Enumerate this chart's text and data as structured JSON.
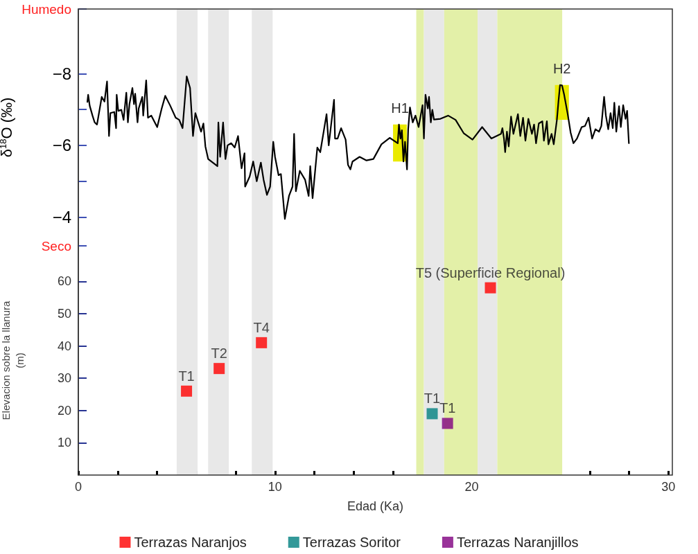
{
  "chart_data": [
    {
      "type": "line",
      "ylabel": "δ$^{18}$O (‰)",
      "xlim": [
        0,
        30.2
      ],
      "ylim": [
        -3.2,
        -9.8
      ],
      "tick_labels": "y",
      "grid": false,
      "legend": false,
      "xticks": [
        0,
        10,
        20,
        30
      ],
      "yticks": [
        {
          "value": -9.8,
          "label": "Humedo"
        },
        -8,
        {
          "value": -7,
          "label": null
        },
        -6,
        {
          "value": -5,
          "label": null
        },
        -4,
        {
          "value": -3.2,
          "label": "Seco"
        }
      ],
      "series": [
        {
          "color": "#000000",
          "x": [
            0.46,
            0.5,
            0.58,
            0.72,
            0.83,
            0.95,
            1.19,
            1.33,
            1.46,
            1.56,
            1.63,
            1.83,
            1.92,
            1.95,
            2.03,
            2.19,
            2.3,
            2.44,
            2.52,
            2.6,
            2.75,
            2.83,
            2.89,
            3.01,
            3.07,
            3.25,
            3.3,
            3.45,
            3.54,
            3.71,
            4.01,
            4.24,
            4.42,
            4.66,
            4.95,
            5.13,
            5.3,
            5.51,
            5.68,
            5.83,
            5.95,
            6.13,
            6.24,
            6.36,
            6.46,
            6.6,
            7.07,
            7.12,
            7.21,
            7.36,
            7.48,
            7.59,
            7.77,
            7.95,
            8.12,
            8.3,
            8.45,
            8.48,
            8.71,
            8.89,
            9.07,
            9.28,
            9.42,
            9.59,
            9.75,
            9.91,
            10.0,
            10.18,
            10.3,
            10.5,
            10.71,
            10.89,
            10.97,
            11.06,
            11.26,
            11.53,
            11.71,
            11.79,
            11.91,
            12.15,
            12.3,
            12.62,
            12.73,
            13.0,
            13.05,
            13.18,
            13.36,
            13.59,
            13.71,
            13.83,
            13.94,
            14.3,
            14.65,
            15.0,
            15.41,
            15.83,
            16.24,
            16.3,
            16.38,
            16.45,
            16.53,
            16.61,
            16.71,
            16.77,
            16.86,
            17.0,
            17.14,
            17.3,
            17.5,
            17.57,
            17.65,
            17.77,
            17.83,
            17.92,
            18.0,
            18.08,
            18.41,
            18.8,
            19.18,
            19.59,
            20.04,
            20.53,
            21.0,
            21.49,
            21.56,
            21.64,
            21.7,
            21.79,
            21.88,
            22.0,
            22.12,
            22.23,
            22.35,
            22.47,
            22.61,
            22.73,
            22.88,
            23.06,
            23.17,
            23.27,
            23.41,
            23.59,
            23.67,
            23.82,
            23.9,
            24.06,
            24.17,
            24.33,
            24.41,
            24.49,
            24.59,
            24.7,
            24.88,
            25.03,
            25.17,
            25.35,
            25.59,
            25.76,
            25.94,
            26.12,
            26.29,
            26.47,
            26.59,
            26.73,
            26.82,
            26.94,
            27.06,
            27.17,
            27.25,
            27.35,
            27.49,
            27.58,
            27.7,
            27.82,
            27.9,
            27.99
          ],
          "values": [
            -7.21,
            -7.41,
            -7.1,
            -6.83,
            -6.64,
            -6.58,
            -7.35,
            -7.22,
            -7.78,
            -6.26,
            -6.9,
            -6.93,
            -6.48,
            -7.41,
            -6.96,
            -6.99,
            -6.71,
            -7.47,
            -6.64,
            -7.15,
            -7.6,
            -7.15,
            -7.44,
            -6.64,
            -7.03,
            -7.35,
            -6.83,
            -7.81,
            -6.77,
            -6.83,
            -6.51,
            -7.03,
            -7.38,
            -7.12,
            -6.77,
            -6.71,
            -6.48,
            -7.92,
            -7.6,
            -6.26,
            -6.9,
            -6.58,
            -6.38,
            -6.61,
            -5.97,
            -5.62,
            -5.42,
            -6.64,
            -5.68,
            -6.64,
            -5.62,
            -6.0,
            -6.06,
            -5.94,
            -6.26,
            -5.36,
            -5.78,
            -4.85,
            -5.13,
            -5.55,
            -5.0,
            -5.52,
            -5.04,
            -4.62,
            -4.85,
            -6.1,
            -5.68,
            -5.17,
            -5.2,
            -3.95,
            -4.59,
            -4.85,
            -6.32,
            -4.72,
            -5.29,
            -5.04,
            -4.59,
            -5.42,
            -4.53,
            -5.94,
            -5.81,
            -6.87,
            -6.0,
            -7.27,
            -6.19,
            -6.19,
            -6.48,
            -6.16,
            -5.46,
            -5.33,
            -5.55,
            -5.68,
            -5.58,
            -5.62,
            -6.03,
            -6.21,
            -6.06,
            -6.58,
            -6.19,
            -6.42,
            -5.55,
            -6.1,
            -5.33,
            -6.45,
            -7.06,
            -6.64,
            -6.83,
            -6.51,
            -7.12,
            -6.19,
            -7.41,
            -7.03,
            -7.35,
            -6.64,
            -6.99,
            -6.72,
            -6.74,
            -6.83,
            -6.71,
            -6.34,
            -6.16,
            -6.51,
            -6.19,
            -6.32,
            -6.48,
            -6.19,
            -5.81,
            -6.38,
            -5.97,
            -6.8,
            -6.32,
            -6.58,
            -6.87,
            -6.26,
            -6.77,
            -6.13,
            -6.74,
            -6.32,
            -6.58,
            -6.06,
            -6.61,
            -6.67,
            -6.13,
            -6.67,
            -6.03,
            -6.32,
            -6.03,
            -6.71,
            -7.22,
            -7.68,
            -7.67,
            -7.41,
            -6.87,
            -6.35,
            -6.06,
            -6.19,
            -6.51,
            -6.54,
            -6.77,
            -6.19,
            -6.45,
            -6.38,
            -6.54,
            -7.35,
            -6.83,
            -6.45,
            -6.9,
            -6.48,
            -7.19,
            -6.38,
            -7.09,
            -6.51,
            -7.12,
            -6.74,
            -6.96,
            -6.06
          ]
        }
      ],
      "bands": [
        {
          "axis": "x",
          "from": 5.0,
          "to": 6.06,
          "color": "#e8e8e8"
        },
        {
          "axis": "x",
          "from": 6.6,
          "to": 7.65,
          "color": "#e8e8e8"
        },
        {
          "axis": "x",
          "from": 8.82,
          "to": 9.88,
          "color": "#e8e8e8"
        },
        {
          "axis": "x",
          "from": 17.18,
          "to": 17.57,
          "color": "#e3f0a8"
        },
        {
          "axis": "x",
          "from": 17.57,
          "to": 18.6,
          "color": "#e8e8e8"
        },
        {
          "axis": "x",
          "from": 18.6,
          "to": 20.3,
          "color": "#e3f0a8"
        },
        {
          "axis": "x",
          "from": 20.3,
          "to": 21.3,
          "color": "#e8e8e8"
        },
        {
          "axis": "x",
          "from": 21.3,
          "to": 24.6,
          "color": "#e3f0a8"
        },
        {
          "axis": "x",
          "from": 16.0,
          "to": 16.7,
          "label": "H1",
          "color": "#eaea00"
        },
        {
          "axis": "x",
          "from": 24.23,
          "to": 24.94,
          "label": "H2",
          "color": "#eaea00"
        }
      ]
    },
    {
      "type": "scatter",
      "xlabel": "Edad (Ka)",
      "ylabel": "Elevacion sobre la llanura\n(m)",
      "xlim": [
        0,
        30.2
      ],
      "ylim": [
        0,
        71
      ],
      "grid": false,
      "legend": "bottom",
      "marker": "square",
      "xticks": [
        0,
        {
          "value": 2,
          "label": null
        },
        {
          "value": 4,
          "label": null
        },
        {
          "value": 6,
          "label": null
        },
        {
          "value": 8,
          "label": null
        },
        10,
        {
          "value": 12,
          "label": null
        },
        {
          "value": 14,
          "label": null
        },
        {
          "value": 16,
          "label": null
        },
        {
          "value": 18,
          "label": null
        },
        20,
        {
          "value": 22,
          "label": null
        },
        {
          "value": 24,
          "label": null
        },
        {
          "value": 26,
          "label": null
        },
        {
          "value": 28,
          "label": null
        },
        30
      ],
      "yticks": [
        10,
        20,
        30,
        40,
        50,
        60
      ],
      "series": [
        {
          "name": "Terrazas Naranjos",
          "color": "#ff0000",
          "x": [
            5.5,
            7.16,
            9.31,
            20.95
          ],
          "values": [
            26,
            33,
            41,
            58
          ]
        },
        {
          "name": "Terrazas Soritor",
          "color": "#008080",
          "x": [
            17.99
          ],
          "values": [
            19
          ]
        },
        {
          "name": "Terrazas Naranjillos",
          "color": "#800080",
          "x": [
            18.77
          ],
          "values": [
            16
          ]
        }
      ],
      "annotations": [
        {
          "text": "T1",
          "x": 5.5,
          "y": 26
        },
        {
          "text": "T2",
          "x": 7.16,
          "y": 33
        },
        {
          "text": "T4",
          "x": 9.31,
          "y": 41
        },
        {
          "text": "T5 (Superficie Regional)",
          "x": 20.95,
          "y": 58
        },
        {
          "text": "T1",
          "x": 17.99,
          "y": 19
        },
        {
          "text": "T1",
          "x": 18.77,
          "y": 16
        }
      ],
      "bands": [
        {
          "axis": "x",
          "from": 5.0,
          "to": 6.06,
          "color": "#e8e8e8"
        },
        {
          "axis": "x",
          "from": 6.6,
          "to": 7.65,
          "color": "#e8e8e8"
        },
        {
          "axis": "x",
          "from": 8.82,
          "to": 9.88,
          "color": "#e8e8e8"
        },
        {
          "axis": "x",
          "from": 17.18,
          "to": 17.57,
          "color": "#e3f0a8"
        },
        {
          "axis": "x",
          "from": 17.57,
          "to": 18.6,
          "color": "#e8e8e8"
        },
        {
          "axis": "x",
          "from": 18.6,
          "to": 20.3,
          "color": "#e3f0a8"
        },
        {
          "axis": "x",
          "from": 20.3,
          "to": 21.3,
          "color": "#e8e8e8"
        },
        {
          "axis": "x",
          "from": 21.3,
          "to": 24.6,
          "color": "#e3f0a8"
        }
      ]
    }
  ]
}
